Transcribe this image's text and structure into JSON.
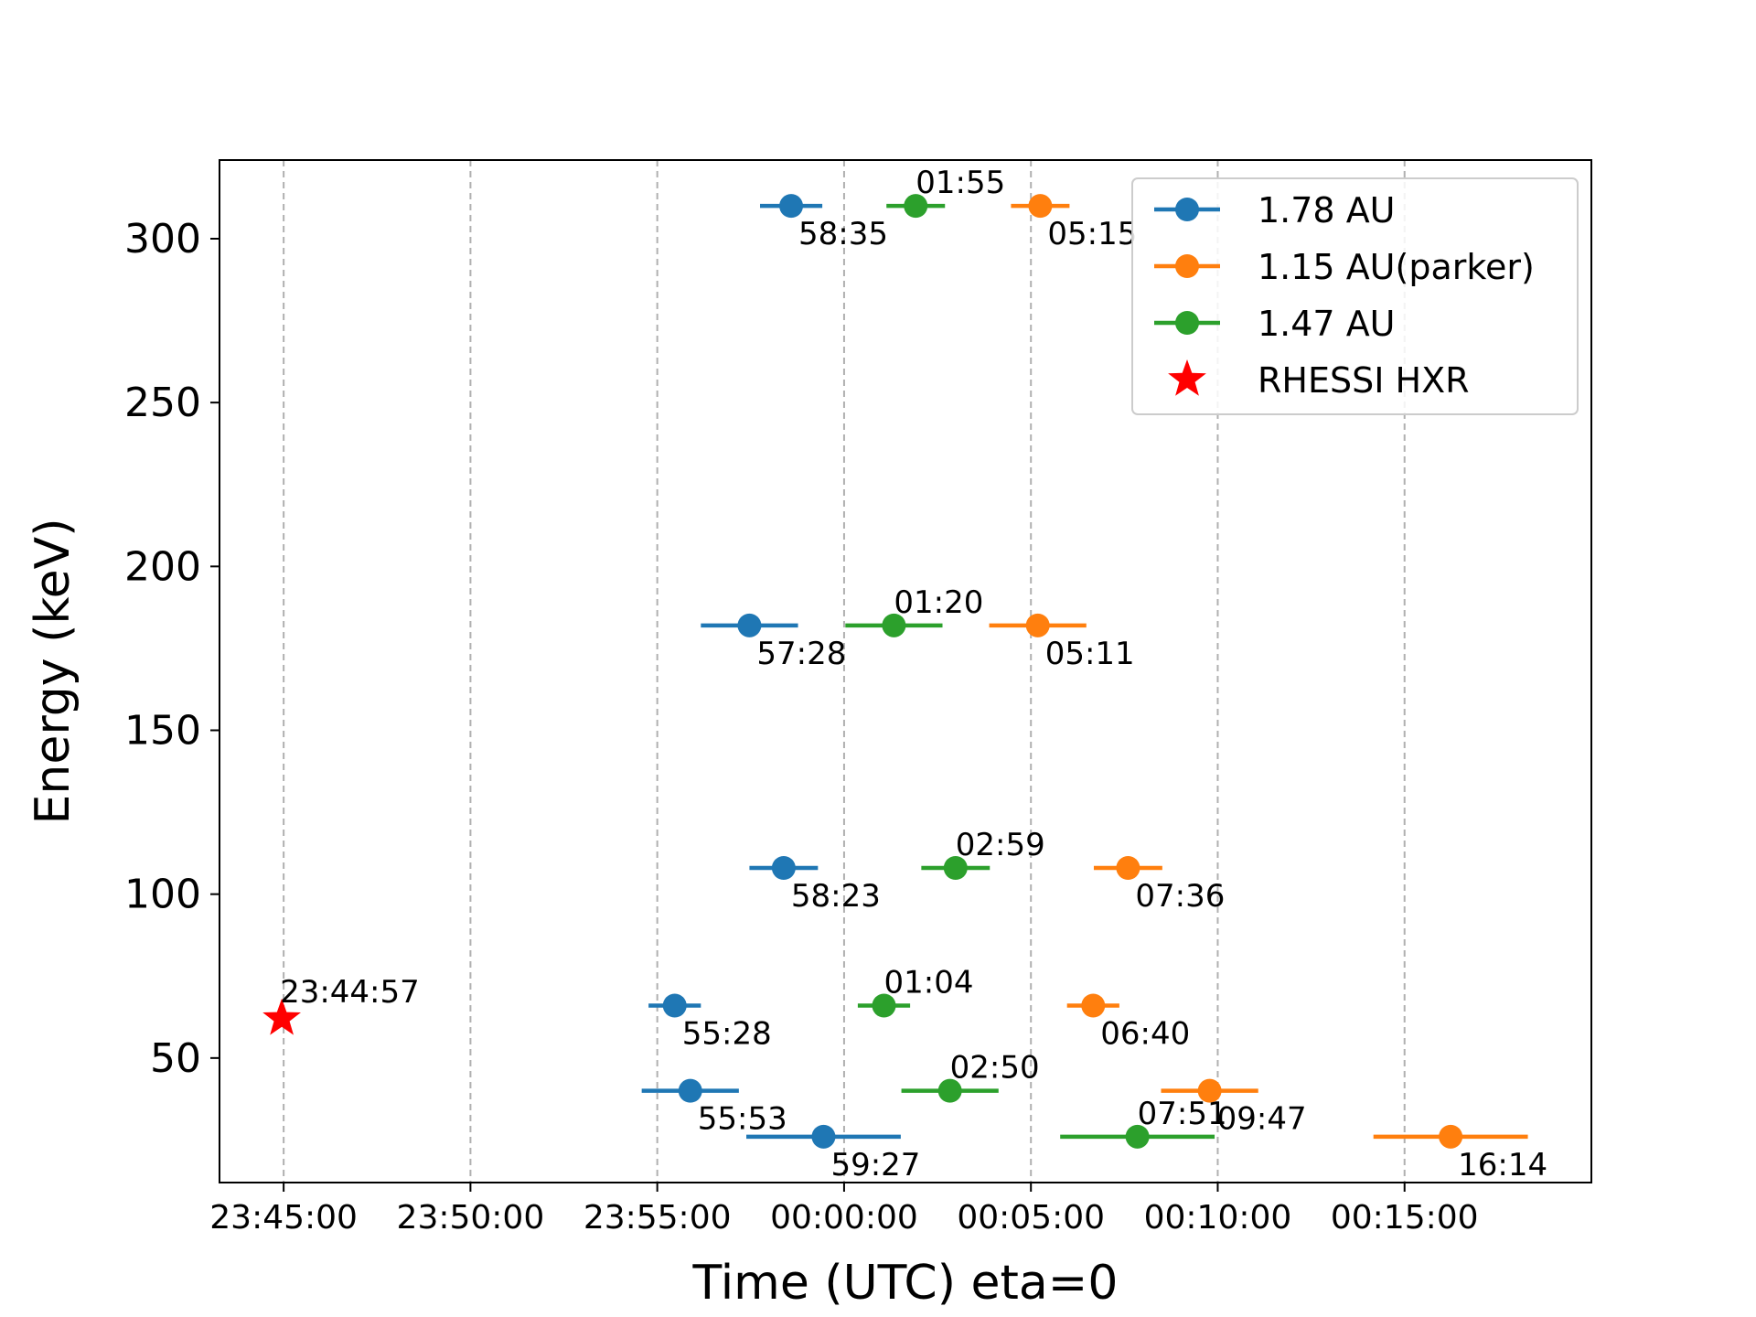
{
  "chart_data": {
    "type": "scatter",
    "xlabel": "Time (UTC) eta=0",
    "ylabel": "Energy (keV)",
    "x_ticks": [
      "23:45:00",
      "23:50:00",
      "23:55:00",
      "00:00:00",
      "00:05:00",
      "00:10:00",
      "00:15:00"
    ],
    "x_tick_seconds": [
      -900,
      -600,
      -300,
      0,
      300,
      600,
      900
    ],
    "xlim_seconds": [
      -1003,
      1200
    ],
    "y_ticks": [
      50,
      100,
      150,
      200,
      250,
      300
    ],
    "ylim": [
      12,
      324
    ],
    "grid": "vertical dashed",
    "legend_placement": "top-right",
    "series": [
      {
        "name": "1.78 AU",
        "color": "#1f77b4",
        "points": [
          {
            "energy": 310,
            "t": -85,
            "t_minus": 50,
            "t_plus": 50,
            "label": "58:35"
          },
          {
            "energy": 182,
            "t": -152,
            "t_minus": 78,
            "t_plus": 78,
            "label": "57:28"
          },
          {
            "energy": 108,
            "t": -97,
            "t_minus": 55,
            "t_plus": 55,
            "label": "58:23"
          },
          {
            "energy": 66,
            "t": -272,
            "t_minus": 42,
            "t_plus": 42,
            "label": "55:28"
          },
          {
            "energy": 40,
            "t": -247,
            "t_minus": 78,
            "t_plus": 78,
            "label": "55:53"
          },
          {
            "energy": 26,
            "t": -33,
            "t_minus": 124,
            "t_plus": 124,
            "label": "59:27"
          }
        ]
      },
      {
        "name": "1.15 AU(parker)",
        "color": "#ff7f0e",
        "points": [
          {
            "energy": 310,
            "t": 315,
            "t_minus": 47,
            "t_plus": 47,
            "label": "05:15"
          },
          {
            "energy": 182,
            "t": 311,
            "t_minus": 78,
            "t_plus": 78,
            "label": "05:11"
          },
          {
            "energy": 108,
            "t": 456,
            "t_minus": 55,
            "t_plus": 55,
            "label": "07:36"
          },
          {
            "energy": 66,
            "t": 400,
            "t_minus": 42,
            "t_plus": 42,
            "label": "06:40"
          },
          {
            "energy": 40,
            "t": 587,
            "t_minus": 78,
            "t_plus": 78,
            "label": "09:47"
          },
          {
            "energy": 26,
            "t": 974,
            "t_minus": 124,
            "t_plus": 124,
            "label": "16:14"
          }
        ]
      },
      {
        "name": "1.47 AU",
        "color": "#2ca02c",
        "points": [
          {
            "energy": 310,
            "t": 115,
            "t_minus": 47,
            "t_plus": 47,
            "label": "01:55"
          },
          {
            "energy": 182,
            "t": 80,
            "t_minus": 78,
            "t_plus": 78,
            "label": "01:20"
          },
          {
            "energy": 108,
            "t": 179,
            "t_minus": 55,
            "t_plus": 55,
            "label": "02:59"
          },
          {
            "energy": 66,
            "t": 64,
            "t_minus": 42,
            "t_plus": 42,
            "label": "01:04"
          },
          {
            "energy": 40,
            "t": 170,
            "t_minus": 78,
            "t_plus": 78,
            "label": "02:50"
          },
          {
            "energy": 26,
            "t": 471,
            "t_minus": 124,
            "t_plus": 124,
            "label": "07:51"
          }
        ]
      },
      {
        "name": "RHESSI HXR",
        "color": "#ff0000",
        "marker": "star",
        "points": [
          {
            "energy": 62,
            "t": -903,
            "label": "23:44:57"
          }
        ]
      }
    ]
  }
}
